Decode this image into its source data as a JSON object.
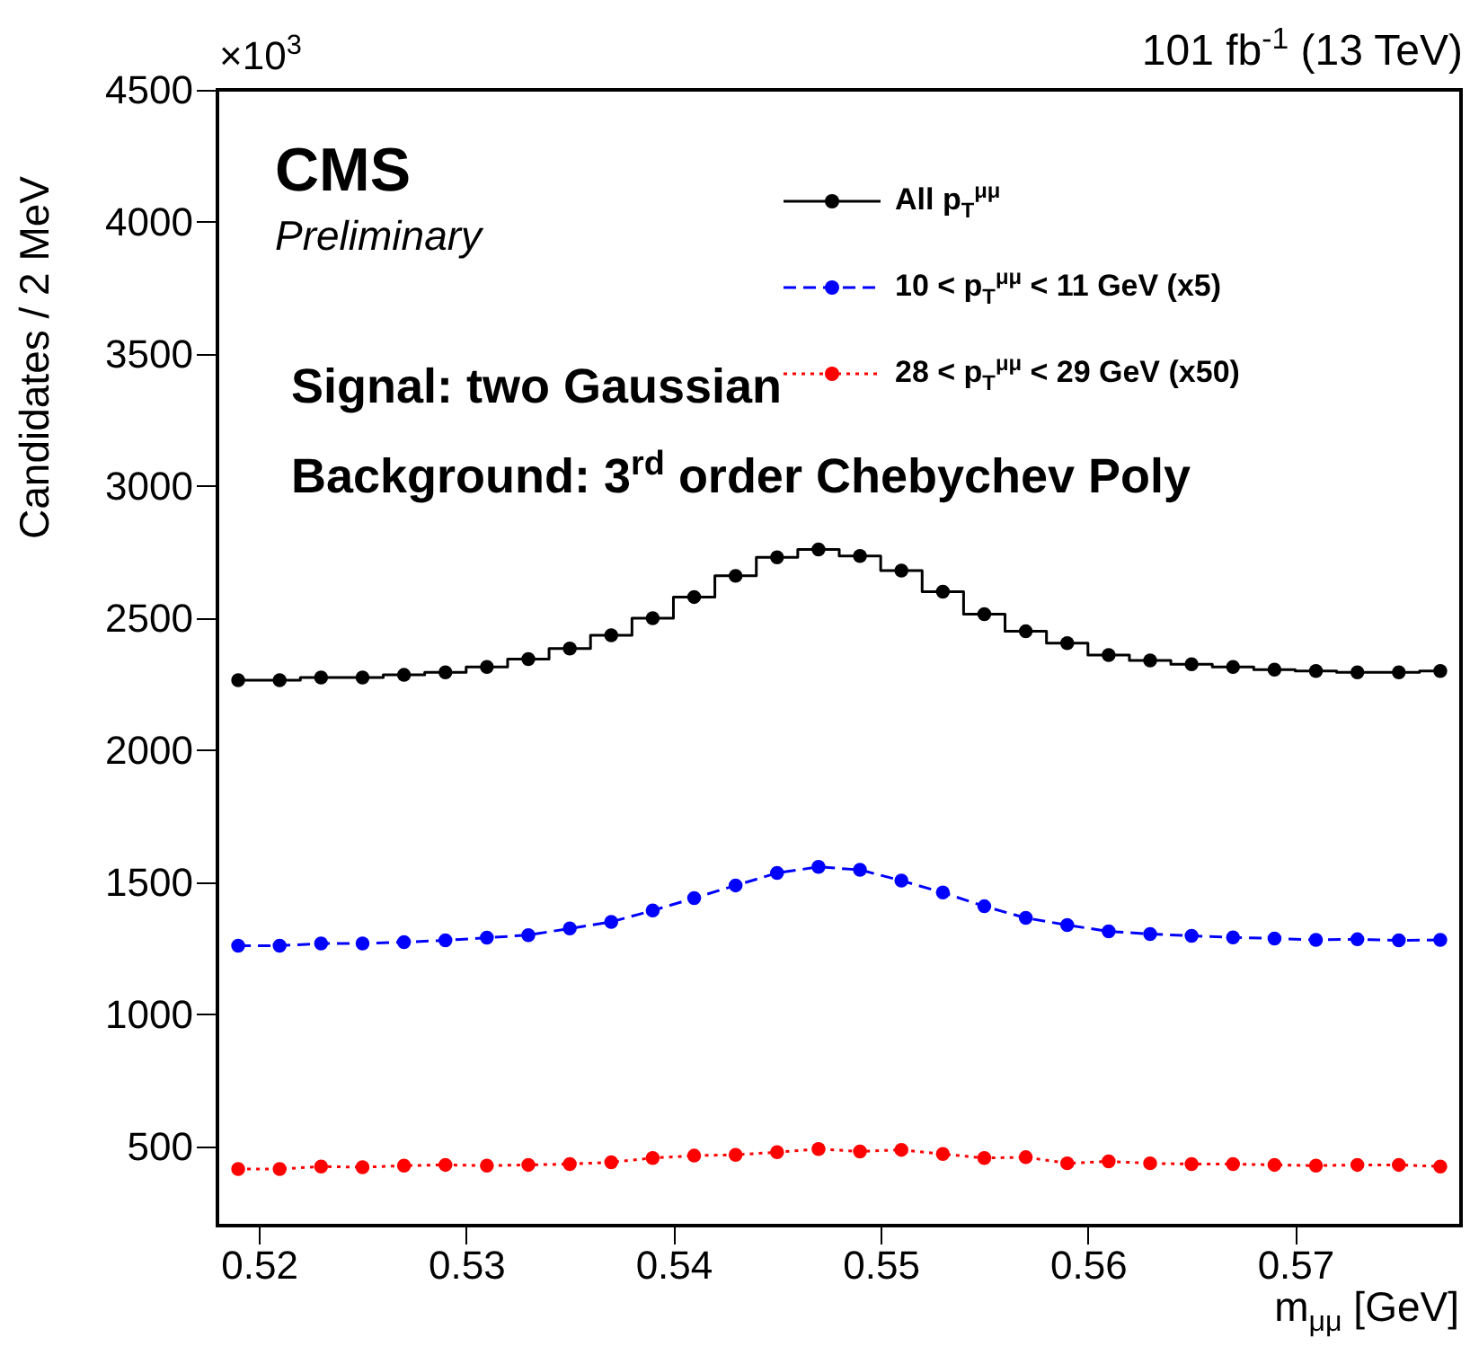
{
  "chart_data": {
    "type": "line",
    "title": "101 fb$^{-1}$ (13 TeV)",
    "xlabel": "m$_{μμ}$ [GeV]",
    "ylabel": "Candidates / 2 MeV",
    "annotations": [
      "×10$^{3}$",
      "CMS",
      "Preliminary",
      "Signal: two Gaussian",
      "Background: 3$^{rd}$ order Chebychev Poly"
    ],
    "x": [
      0.519,
      0.521,
      0.523,
      0.525,
      0.527,
      0.529,
      0.531,
      0.533,
      0.535,
      0.537,
      0.539,
      0.541,
      0.543,
      0.545,
      0.547,
      0.549,
      0.551,
      0.553,
      0.555,
      0.557,
      0.559,
      0.561,
      0.563,
      0.565,
      0.567,
      0.569,
      0.571,
      0.573,
      0.575,
      0.577
    ],
    "series": [
      {
        "name": "All p$_{T}$$^{μμ}$",
        "type": "step",
        "color": "#000000",
        "line_style": "solid",
        "values": [
          2265,
          2265,
          2275,
          2275,
          2285,
          2295,
          2315,
          2345,
          2385,
          2435,
          2500,
          2580,
          2660,
          2730,
          2760,
          2735,
          2680,
          2600,
          2515,
          2450,
          2405,
          2360,
          2340,
          2325,
          2315,
          2305,
          2300,
          2295,
          2295,
          2300
        ]
      },
      {
        "name": "10 < p$_{T}$$^{μμ}$ < 11 GeV (x5)",
        "type": "line",
        "color": "#0000ff",
        "line_style": "dashed",
        "values": [
          1260,
          1260,
          1268,
          1268,
          1273,
          1280,
          1290,
          1300,
          1325,
          1350,
          1393,
          1440,
          1488,
          1535,
          1558,
          1547,
          1506,
          1461,
          1409,
          1365,
          1338,
          1314,
          1304,
          1297,
          1291,
          1287,
          1282,
          1284,
          1280,
          1282
        ]
      },
      {
        "name": "28 < p$_{T}$$^{μμ}$ < 29 GeV (x50)",
        "type": "line",
        "color": "#ff0000",
        "line_style": "dotted",
        "values": [
          414,
          414,
          424,
          421,
          427,
          430,
          427,
          430,
          433,
          440,
          456,
          465,
          468,
          478,
          490,
          481,
          487,
          471,
          456,
          459,
          436,
          443,
          436,
          433,
          433,
          430,
          427,
          430,
          430,
          424
        ]
      }
    ],
    "xlim": [
      0.518,
      0.578
    ],
    "xticks": [
      0.52,
      0.53,
      0.54,
      0.55,
      0.56,
      0.57
    ],
    "ylim": [
      200,
      4500
    ],
    "yticks": [
      500,
      1000,
      1500,
      2000,
      2500,
      3000,
      3500,
      4000,
      4500
    ],
    "grid": false,
    "legend": "top",
    "marker": "circle"
  }
}
